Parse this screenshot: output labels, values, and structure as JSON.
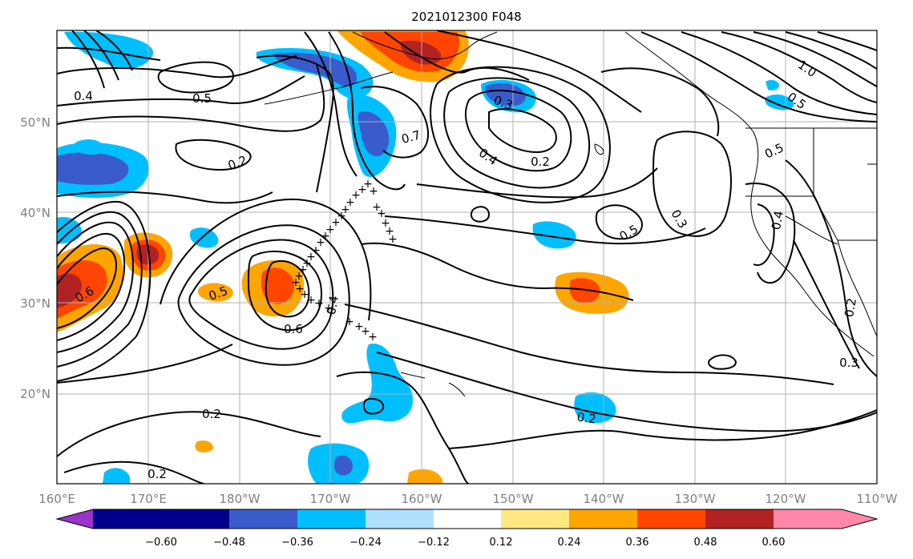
{
  "title": "2021012300 F048",
  "map": {
    "lon_ticks": [
      "160°E",
      "170°E",
      "180°W",
      "170°W",
      "160°W",
      "150°W",
      "140°W",
      "130°W",
      "120°W",
      "110°W"
    ],
    "lat_ticks": [
      "20°N",
      "30°N",
      "40°N",
      "50°N"
    ],
    "extent": {
      "lon_min": 160,
      "lon_max": 250,
      "lat_min": 10,
      "lat_max": 60
    },
    "grid": true
  },
  "colorbar": {
    "ticks": [
      "−0.60",
      "−0.48",
      "−0.36",
      "−0.24",
      "−0.12",
      "0.12",
      "0.24",
      "0.36",
      "0.48",
      "0.60"
    ],
    "colors": [
      "#9933cc",
      "#00008b",
      "#3a5bcc",
      "#00bfff",
      "#b0e0ff",
      "#ffffff",
      "#ffe884",
      "#ffa500",
      "#ff4500",
      "#b22222",
      "#ff88aa"
    ],
    "extend": "both"
  },
  "contour_labels": [
    "0.4",
    "0.5",
    "0.2",
    "0.7",
    "0.3",
    "0.2",
    "0.4",
    "1.0",
    "0.5",
    "0.5",
    "0.3",
    "0.5",
    "0.4",
    "0.5",
    "0.6",
    "0.4",
    "0.6",
    "0.2",
    "0.2",
    "0.2",
    "0.3",
    "0.2"
  ],
  "track_marker": "+"
}
